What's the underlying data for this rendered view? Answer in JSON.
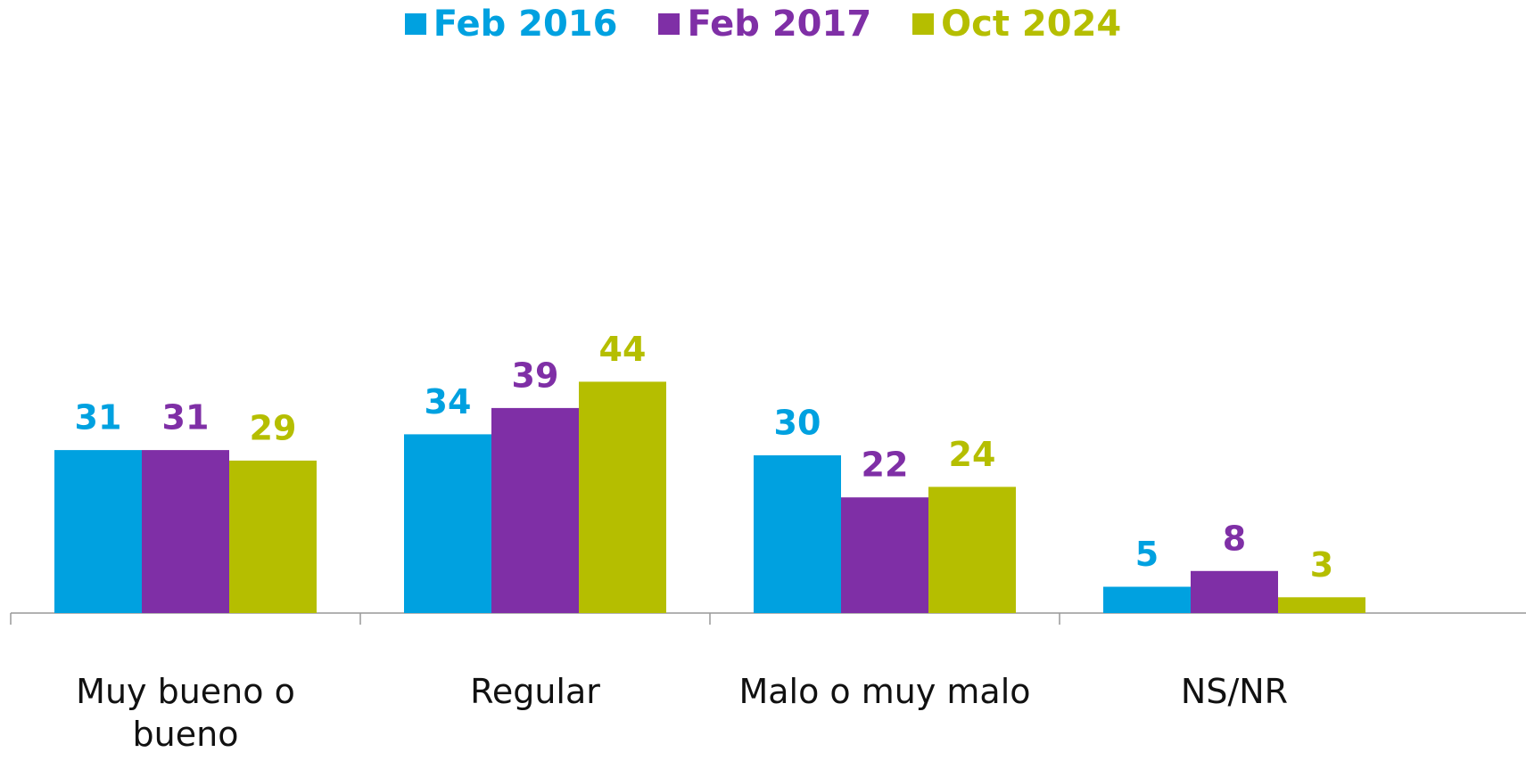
{
  "chart_data": {
    "type": "bar",
    "categories": [
      "Muy bueno o bueno",
      "Regular",
      "Malo o muy malo",
      "NS/NR"
    ],
    "series": [
      {
        "name": "Feb 2016",
        "color": "#00a1e0",
        "values": [
          31,
          34,
          30,
          5
        ]
      },
      {
        "name": "Feb 2017",
        "color": "#7f2fa6",
        "values": [
          31,
          39,
          22,
          8
        ]
      },
      {
        "name": "Oct 2024",
        "color": "#b5be00",
        "values": [
          29,
          44,
          24,
          3
        ]
      }
    ],
    "ylim": [
      0,
      100
    ],
    "legend": "top"
  }
}
